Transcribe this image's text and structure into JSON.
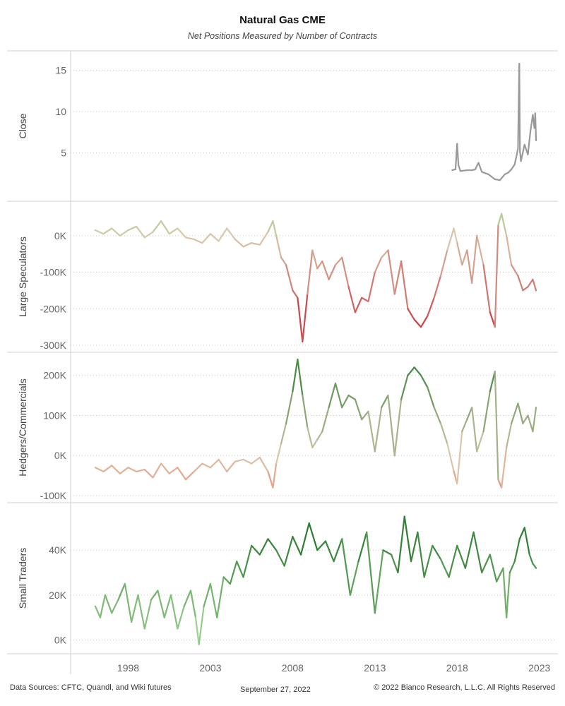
{
  "header": {
    "title": "Natural Gas CME",
    "subtitle": "Net Positions Measured by Number of Contracts"
  },
  "footer": {
    "sources": "Data Sources: CFTC, Quandl, and Wiki futures",
    "date": "September 27, 2022",
    "copyright": "© 2022 Bianco Research, L.L.C. All Rights Reserved"
  },
  "chart_data": {
    "type": "line",
    "x_axis": {
      "ticks": [
        "1998",
        "2003",
        "2008",
        "2013",
        "2018",
        "2023"
      ],
      "range": [
        1994.5,
        2024.0
      ]
    },
    "panels": [
      {
        "ylabel": "Close",
        "ylim": [
          0,
          16.5
        ],
        "yticks": [
          5,
          10,
          15
        ],
        "ytick_labels": [
          "5",
          "10",
          "15"
        ],
        "color": "#999999",
        "colors": {
          "line": "#999999"
        },
        "x": [
          2017.7,
          2017.9,
          2018.0,
          2018.08,
          2018.2,
          2018.6,
          2018.9,
          2019.1,
          2019.3,
          2019.5,
          2019.9,
          2020.3,
          2020.6,
          2020.9,
          2021.1,
          2021.3,
          2021.5,
          2021.7,
          2021.78,
          2021.82,
          2021.88,
          2022.1,
          2022.3,
          2022.45,
          2022.6,
          2022.7,
          2022.75,
          2022.8
        ],
        "values": [
          2.9,
          3.0,
          6.1,
          3.5,
          2.8,
          2.9,
          2.9,
          3.0,
          3.8,
          2.7,
          2.4,
          1.8,
          1.7,
          2.4,
          2.6,
          3.0,
          3.6,
          5.5,
          15.8,
          5.2,
          4.0,
          6.0,
          4.8,
          7.5,
          9.6,
          8.0,
          9.8,
          6.5
        ]
      },
      {
        "ylabel": "Large Speculators",
        "ylim": [
          -300000,
          75000
        ],
        "yticks": [
          0,
          -100000,
          -200000,
          -300000
        ],
        "ytick_labels": [
          "0K",
          "-100K",
          "-200K",
          "-300K"
        ],
        "colors": {
          "positive": "#8fcf7e",
          "neutral": "#d9c9ad",
          "negative": "#c81e2d"
        },
        "x": [
          1996.0,
          1996.5,
          1997.0,
          1997.5,
          1998.0,
          1998.5,
          1999.0,
          1999.5,
          2000.0,
          2000.5,
          2001.0,
          2001.5,
          2002.0,
          2002.5,
          2003.0,
          2003.5,
          2004.0,
          2004.5,
          2005.0,
          2005.5,
          2006.0,
          2006.5,
          2006.8,
          2007.0,
          2007.3,
          2007.6,
          2008.0,
          2008.3,
          2008.6,
          2008.9,
          2009.2,
          2009.5,
          2009.8,
          2010.2,
          2010.6,
          2011.0,
          2011.4,
          2011.8,
          2012.2,
          2012.6,
          2013.0,
          2013.4,
          2013.8,
          2014.2,
          2014.6,
          2015.0,
          2015.4,
          2015.8,
          2016.2,
          2016.6,
          2017.0,
          2017.4,
          2017.8,
          2018.0,
          2018.3,
          2018.6,
          2018.9,
          2019.2,
          2019.6,
          2020.0,
          2020.3,
          2020.5,
          2020.7,
          2021.0,
          2021.3,
          2021.7,
          2022.0,
          2022.3,
          2022.6,
          2022.8
        ],
        "values": [
          15000,
          5000,
          20000,
          0,
          15000,
          25000,
          -5000,
          10000,
          40000,
          5000,
          20000,
          -5000,
          -10000,
          -20000,
          5000,
          -15000,
          20000,
          -10000,
          -30000,
          -20000,
          -25000,
          10000,
          40000,
          0,
          -60000,
          -80000,
          -150000,
          -170000,
          -290000,
          -160000,
          -40000,
          -90000,
          -70000,
          -120000,
          -80000,
          -60000,
          -140000,
          -210000,
          -170000,
          -180000,
          -100000,
          -60000,
          -40000,
          -160000,
          -70000,
          -200000,
          -230000,
          -250000,
          -220000,
          -170000,
          -110000,
          -40000,
          20000,
          -20000,
          -80000,
          -40000,
          -130000,
          0,
          -80000,
          -210000,
          -250000,
          30000,
          60000,
          0,
          -80000,
          -110000,
          -150000,
          -140000,
          -120000,
          -150000
        ]
      },
      {
        "ylabel": "Hedgers/Commercials",
        "ylim": [
          -100000,
          240000
        ],
        "yticks": [
          200000,
          100000,
          0,
          -100000
        ],
        "ytick_labels": [
          "200K",
          "100K",
          "0K",
          "-100K"
        ],
        "colors": {
          "positive": "#2e7d32",
          "neutral": "#d9c9ad",
          "negative": "#f0856e"
        },
        "x": [
          1996.0,
          1996.5,
          1997.0,
          1997.5,
          1998.0,
          1998.5,
          1999.0,
          1999.5,
          2000.0,
          2000.5,
          2001.0,
          2001.5,
          2002.0,
          2002.5,
          2003.0,
          2003.5,
          2004.0,
          2004.5,
          2005.0,
          2005.5,
          2006.0,
          2006.5,
          2006.8,
          2007.0,
          2007.3,
          2007.6,
          2008.0,
          2008.3,
          2008.6,
          2008.9,
          2009.2,
          2009.5,
          2009.8,
          2010.2,
          2010.6,
          2011.0,
          2011.4,
          2011.8,
          2012.2,
          2012.6,
          2013.0,
          2013.4,
          2013.8,
          2014.2,
          2014.6,
          2015.0,
          2015.4,
          2015.8,
          2016.2,
          2016.6,
          2017.0,
          2017.4,
          2017.8,
          2018.0,
          2018.3,
          2018.6,
          2018.9,
          2019.2,
          2019.6,
          2020.0,
          2020.3,
          2020.5,
          2020.7,
          2021.0,
          2021.3,
          2021.7,
          2022.0,
          2022.3,
          2022.6,
          2022.8
        ],
        "values": [
          -30000,
          -40000,
          -25000,
          -45000,
          -30000,
          -40000,
          -35000,
          -55000,
          -20000,
          -45000,
          -30000,
          -60000,
          -40000,
          -20000,
          -30000,
          -10000,
          -40000,
          -15000,
          -10000,
          -20000,
          -5000,
          -40000,
          -80000,
          -20000,
          30000,
          80000,
          160000,
          240000,
          150000,
          70000,
          20000,
          40000,
          60000,
          120000,
          180000,
          120000,
          150000,
          140000,
          90000,
          110000,
          10000,
          120000,
          150000,
          0,
          140000,
          200000,
          220000,
          200000,
          170000,
          120000,
          80000,
          30000,
          -40000,
          -70000,
          60000,
          90000,
          120000,
          10000,
          60000,
          160000,
          210000,
          -60000,
          -80000,
          20000,
          80000,
          130000,
          80000,
          100000,
          60000,
          120000
        ]
      },
      {
        "ylabel": "Small Traders",
        "ylim": [
          -3000,
          58000
        ],
        "yticks": [
          40000,
          20000,
          0
        ],
        "ytick_labels": [
          "40K",
          "20K",
          "0K"
        ],
        "colors": {
          "positive": "#2e7d32",
          "light": "#a8d99a"
        },
        "x": [
          1996.0,
          1996.3,
          1996.6,
          1997.0,
          1997.4,
          1997.8,
          1998.2,
          1998.6,
          1999.0,
          1999.4,
          1999.8,
          2000.2,
          2000.6,
          2001.0,
          2001.4,
          2001.8,
          2002.1,
          2002.3,
          2002.6,
          2003.0,
          2003.4,
          2003.8,
          2004.2,
          2004.6,
          2005.0,
          2005.5,
          2006.0,
          2006.5,
          2007.0,
          2007.5,
          2008.0,
          2008.5,
          2009.0,
          2009.5,
          2010.0,
          2010.5,
          2011.0,
          2011.5,
          2012.0,
          2012.5,
          2013.0,
          2013.5,
          2014.0,
          2014.4,
          2014.8,
          2015.2,
          2015.6,
          2016.0,
          2016.5,
          2017.0,
          2017.5,
          2018.0,
          2018.5,
          2019.0,
          2019.5,
          2020.0,
          2020.4,
          2020.8,
          2021.0,
          2021.2,
          2021.5,
          2021.8,
          2022.1,
          2022.4,
          2022.6,
          2022.8
        ],
        "values": [
          15000,
          10000,
          20000,
          12000,
          18000,
          25000,
          8000,
          20000,
          5000,
          18000,
          22000,
          10000,
          20000,
          5000,
          15000,
          22000,
          10000,
          -2000,
          15000,
          25000,
          10000,
          28000,
          25000,
          35000,
          28000,
          42000,
          38000,
          45000,
          40000,
          33000,
          46000,
          38000,
          52000,
          40000,
          44000,
          35000,
          45000,
          20000,
          35000,
          48000,
          12000,
          40000,
          38000,
          30000,
          55000,
          35000,
          48000,
          28000,
          42000,
          36000,
          28000,
          42000,
          32000,
          48000,
          30000,
          38000,
          26000,
          32000,
          10000,
          30000,
          35000,
          45000,
          50000,
          38000,
          34000,
          32000
        ]
      }
    ]
  }
}
